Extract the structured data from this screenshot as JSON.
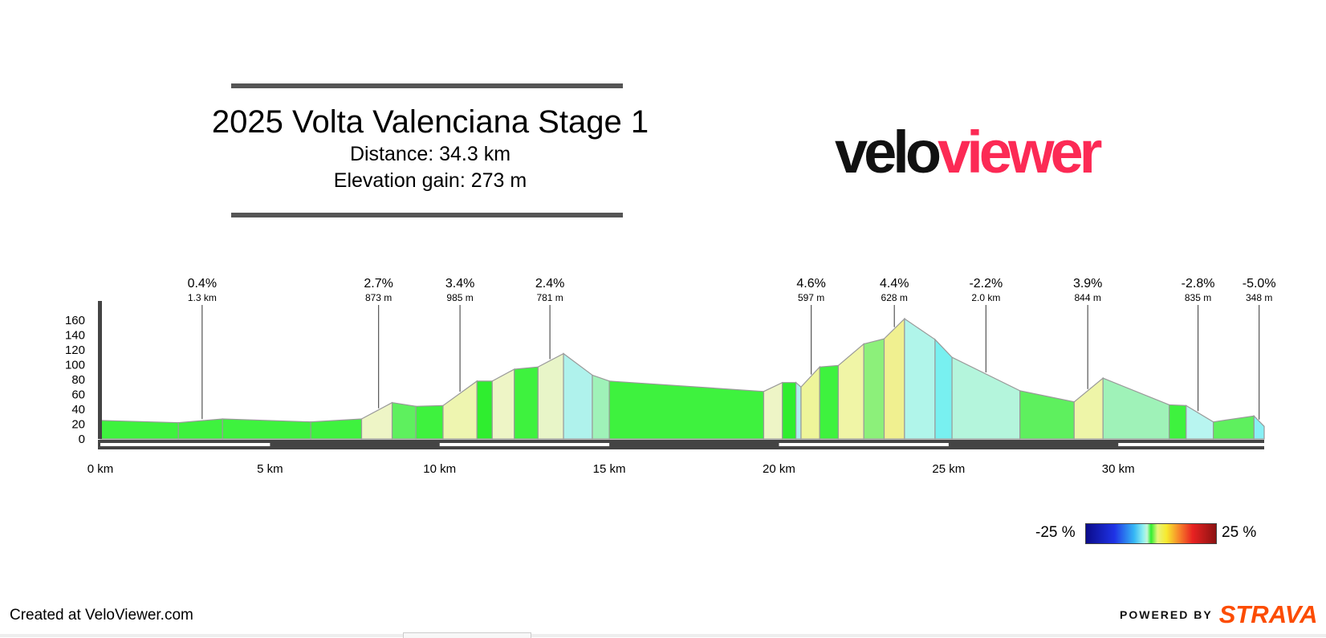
{
  "header": {
    "title": "2025 Volta Valenciana Stage 1",
    "distance": "Distance: 34.3 km",
    "elevation_gain": "Elevation gain: 273 m"
  },
  "logo": {
    "part1": "velo",
    "part2": "viewer",
    "dark_color": "#111111",
    "accent_color": "#fc2a55"
  },
  "legend": {
    "min_label": "-25 %",
    "max_label": "25 %"
  },
  "footer": {
    "created": "Created at VeloViewer.com",
    "powered_by": "POWERED BY",
    "strava": "STRAVA",
    "strava_color": "#fc4c02"
  },
  "chart_data": {
    "type": "area",
    "title": "",
    "x_unit": "km",
    "y_ticks": [
      0,
      20,
      40,
      60,
      80,
      100,
      120,
      140,
      160
    ],
    "x_ticks": [
      "0 km",
      "5 km",
      "10 km",
      "15 km",
      "20 km",
      "25 km",
      "30 km"
    ],
    "x_tick_values": [
      0,
      5,
      10,
      15,
      20,
      25,
      30
    ],
    "xlim": [
      0,
      34.3
    ],
    "ylim": [
      0,
      160
    ],
    "profile": [
      [
        0,
        25
      ],
      [
        2.3,
        22
      ],
      [
        3.6,
        27
      ],
      [
        6.2,
        23
      ],
      [
        7.7,
        27
      ],
      [
        8.6,
        49
      ],
      [
        9.3,
        44
      ],
      [
        10.1,
        45
      ],
      [
        11.1,
        78
      ],
      [
        11.55,
        78
      ],
      [
        12.2,
        94
      ],
      [
        12.9,
        97
      ],
      [
        13.65,
        115
      ],
      [
        14.5,
        86
      ],
      [
        15.0,
        78
      ],
      [
        19.55,
        64
      ],
      [
        20.1,
        76
      ],
      [
        20.5,
        76
      ],
      [
        20.65,
        70
      ],
      [
        21.2,
        97
      ],
      [
        21.75,
        99
      ],
      [
        22.5,
        128
      ],
      [
        23.1,
        135
      ],
      [
        23.7,
        162
      ],
      [
        24.6,
        134
      ],
      [
        25.1,
        110
      ],
      [
        27.1,
        65
      ],
      [
        28.7,
        50
      ],
      [
        29.55,
        82
      ],
      [
        31.5,
        46
      ],
      [
        32.0,
        45
      ],
      [
        32.8,
        23
      ],
      [
        34.0,
        31
      ],
      [
        34.3,
        17
      ]
    ],
    "segment_colors": [
      "#3ef23e",
      "#3ef23e",
      "#3ef23e",
      "#3ef23e",
      "#eef5c6",
      "#5ef05e",
      "#3ef23e",
      "#eef5b0",
      "#2fee2f",
      "#eef5c6",
      "#3ef23e",
      "#e8f5c8",
      "#aff2ec",
      "#9ff2b8",
      "#3ef23e",
      "#eef5c6",
      "#2fee2f",
      "#aff0f0",
      "#eef59a",
      "#3ef23e",
      "#f0f5a6",
      "#8cf07a",
      "#f0f090",
      "#b0f5ea",
      "#78f0f0",
      "#b4f5dc",
      "#5ef05e",
      "#eef5a8",
      "#9ff2b8",
      "#3ef23e",
      "#b8f5f0",
      "#5ef05e",
      "#88f0f5"
    ],
    "climbs": [
      {
        "x": 3.0,
        "gradient": "0.4%",
        "length": "1.3 km"
      },
      {
        "x": 8.2,
        "gradient": "2.7%",
        "length": "873 m"
      },
      {
        "x": 10.6,
        "gradient": "3.4%",
        "length": "985 m"
      },
      {
        "x": 13.25,
        "gradient": "2.4%",
        "length": "781 m"
      },
      {
        "x": 20.95,
        "gradient": "4.6%",
        "length": "597 m"
      },
      {
        "x": 23.4,
        "gradient": "4.4%",
        "length": "628 m"
      },
      {
        "x": 26.1,
        "gradient": "-2.2%",
        "length": "2.0 km"
      },
      {
        "x": 29.1,
        "gradient": "3.9%",
        "length": "844 m"
      },
      {
        "x": 32.35,
        "gradient": "-2.8%",
        "length": "835 m"
      },
      {
        "x": 34.15,
        "gradient": "-5.0%",
        "length": "348 m"
      }
    ]
  }
}
